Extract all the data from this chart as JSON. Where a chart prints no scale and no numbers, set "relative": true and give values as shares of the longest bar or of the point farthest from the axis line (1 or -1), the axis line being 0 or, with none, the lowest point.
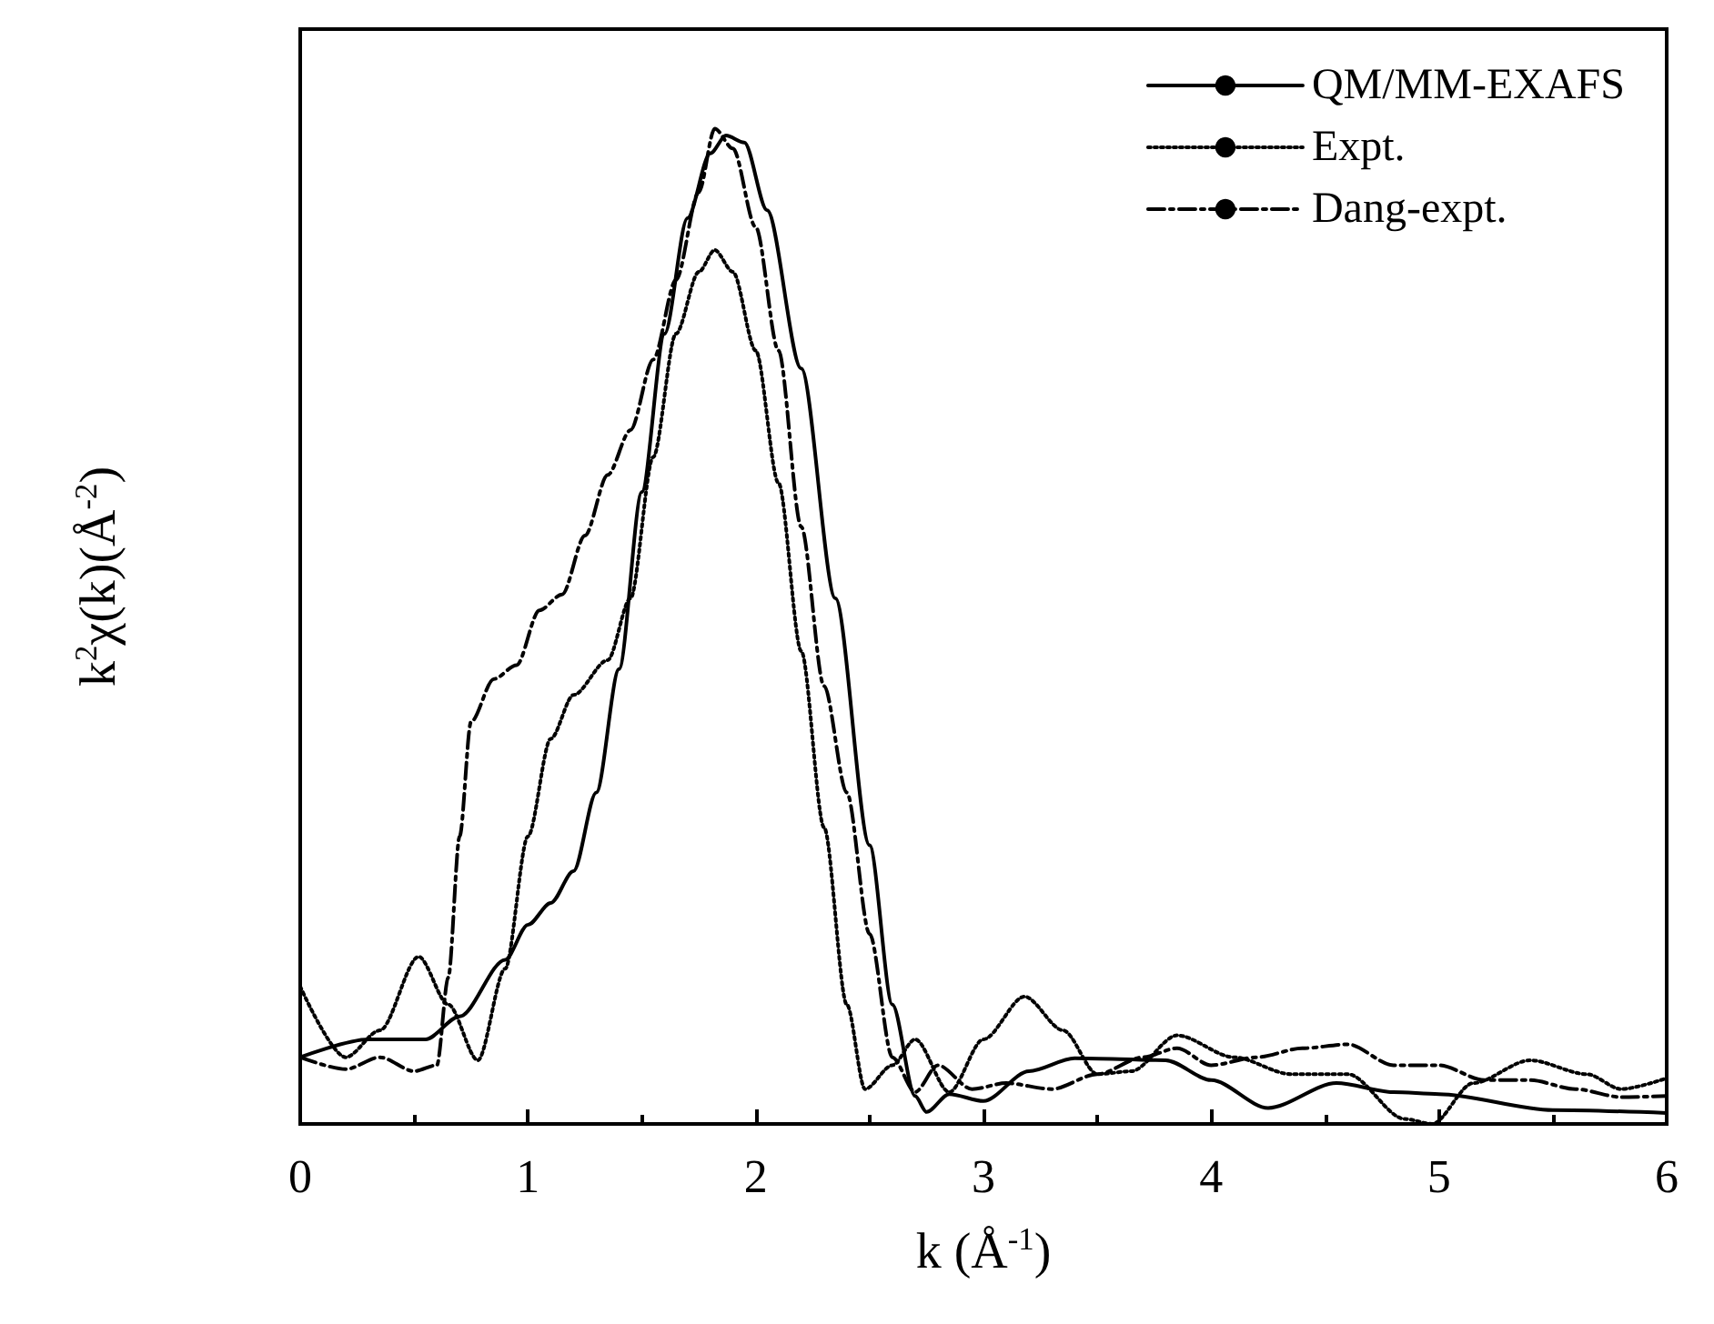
{
  "chart_data": {
    "type": "line",
    "relative": true,
    "xlabel": "k (Å$^{-1}$)",
    "ylabel": "k$^{2}$χ(k)(Å$^{-2}$)",
    "xlim": [
      0,
      6
    ],
    "xticks": [
      0,
      1,
      2,
      3,
      4,
      5,
      6
    ],
    "legend": "top right",
    "grid": false,
    "marker": "none",
    "series": [
      {
        "name": "QM/MM-EXAFS",
        "color": "#000000",
        "line_style": "solid",
        "x": [
          0,
          0.3,
          0.55,
          0.7,
          0.9,
          1.0,
          1.1,
          1.2,
          1.3,
          1.4,
          1.5,
          1.6,
          1.7,
          1.8,
          1.87,
          1.95,
          2.05,
          2.2,
          2.35,
          2.5,
          2.6,
          2.7,
          2.75,
          2.85,
          3.0,
          3.2,
          3.4,
          3.8,
          4.0,
          4.25,
          4.55,
          4.8,
          5.0,
          5.5,
          6.0
        ],
        "values": [
          0.067,
          0.085,
          0.085,
          0.108,
          0.165,
          0.2,
          0.222,
          0.254,
          0.333,
          0.457,
          0.635,
          0.794,
          0.91,
          0.975,
          0.993,
          0.986,
          0.918,
          0.759,
          0.528,
          0.28,
          0.12,
          0.028,
          0.012,
          0.03,
          0.023,
          0.053,
          0.066,
          0.064,
          0.044,
          0.016,
          0.041,
          0.032,
          0.03,
          0.014,
          0.011
        ]
      },
      {
        "name": "Expt.",
        "color": "#000000",
        "line_style": "dotted",
        "x": [
          0,
          0.2,
          0.35,
          0.52,
          0.65,
          0.78,
          0.9,
          1.0,
          1.1,
          1.2,
          1.35,
          1.45,
          1.55,
          1.65,
          1.75,
          1.82,
          1.9,
          2.0,
          2.1,
          2.2,
          2.3,
          2.4,
          2.48,
          2.6,
          2.7,
          2.85,
          3.0,
          3.18,
          3.35,
          3.5,
          3.65,
          3.85,
          4.1,
          4.35,
          4.6,
          4.85,
          4.97,
          5.15,
          5.4,
          5.65,
          5.8,
          6.0
        ],
        "values": [
          0.138,
          0.067,
          0.094,
          0.168,
          0.12,
          0.064,
          0.156,
          0.289,
          0.387,
          0.431,
          0.466,
          0.528,
          0.67,
          0.794,
          0.856,
          0.878,
          0.856,
          0.777,
          0.644,
          0.475,
          0.298,
          0.12,
          0.035,
          0.059,
          0.085,
          0.032,
          0.085,
          0.128,
          0.094,
          0.05,
          0.053,
          0.089,
          0.067,
          0.05,
          0.05,
          0.005,
          0,
          0.041,
          0.064,
          0.05,
          0.035,
          0.046
        ]
      },
      {
        "name": "Dang-expt.",
        "color": "#000000",
        "line_style": "dashdot",
        "x": [
          0,
          0.2,
          0.35,
          0.5,
          0.6,
          0.65,
          0.7,
          0.75,
          0.85,
          0.95,
          1.05,
          1.15,
          1.25,
          1.35,
          1.45,
          1.55,
          1.65,
          1.75,
          1.82,
          1.9,
          2.0,
          2.1,
          2.2,
          2.3,
          2.4,
          2.5,
          2.6,
          2.7,
          2.8,
          2.95,
          3.1,
          3.3,
          3.5,
          3.7,
          3.85,
          4.0,
          4.2,
          4.4,
          4.6,
          4.8,
          5.0,
          5.2,
          5.4,
          5.6,
          5.8,
          6.0
        ],
        "values": [
          0.067,
          0.055,
          0.067,
          0.053,
          0.059,
          0.147,
          0.289,
          0.404,
          0.447,
          0.461,
          0.516,
          0.532,
          0.591,
          0.652,
          0.697,
          0.768,
          0.848,
          0.936,
          1,
          0.98,
          0.901,
          0.777,
          0.6,
          0.44,
          0.333,
          0.191,
          0.067,
          0.032,
          0.059,
          0.035,
          0.041,
          0.035,
          0.05,
          0.067,
          0.076,
          0.059,
          0.067,
          0.076,
          0.08,
          0.059,
          0.059,
          0.044,
          0.044,
          0.035,
          0.027,
          0.028
        ]
      }
    ]
  }
}
